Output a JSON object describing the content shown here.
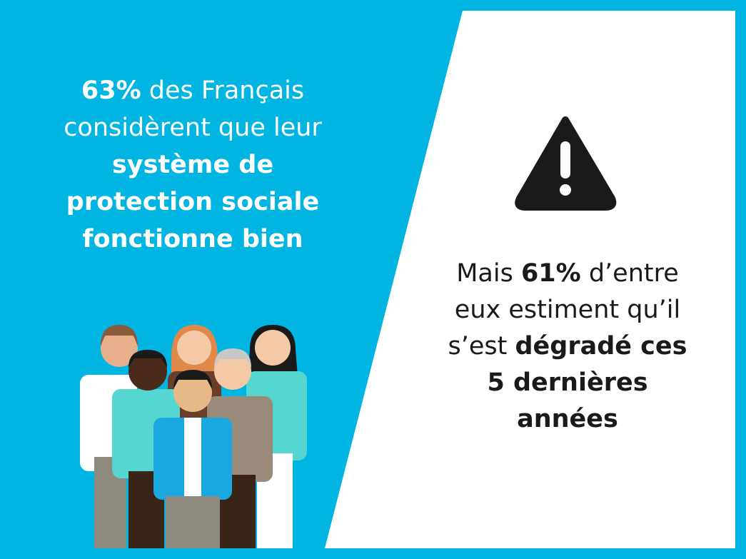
{
  "left": {
    "lines": [
      {
        "runs": [
          {
            "text": "63%",
            "bold": true
          },
          {
            "text": " des Français",
            "bold": false
          }
        ]
      },
      {
        "runs": [
          {
            "text": "considèrent que leur",
            "bold": false
          }
        ]
      },
      {
        "runs": [
          {
            "text": "système de",
            "bold": true
          }
        ]
      },
      {
        "runs": [
          {
            "text": "protection sociale",
            "bold": true
          }
        ]
      },
      {
        "runs": [
          {
            "text": "fonctionne bien",
            "bold": true
          }
        ]
      }
    ]
  },
  "right": {
    "lines": [
      {
        "runs": [
          {
            "text": "Mais ",
            "bold": false
          },
          {
            "text": "61%",
            "bold": true
          },
          {
            "text": " d’entre",
            "bold": false
          }
        ]
      },
      {
        "runs": [
          {
            "text": "eux estiment qu’il",
            "bold": false
          }
        ]
      },
      {
        "runs": [
          {
            "text": "s’est ",
            "bold": false
          },
          {
            "text": "dégradé ces",
            "bold": true
          }
        ]
      },
      {
        "runs": [
          {
            "text": "5 dernières",
            "bold": true
          }
        ]
      },
      {
        "runs": [
          {
            "text": "années",
            "bold": true
          }
        ]
      }
    ]
  }
}
